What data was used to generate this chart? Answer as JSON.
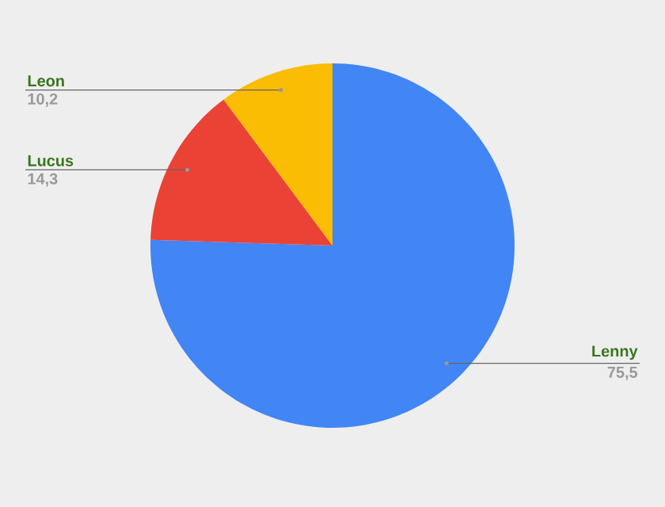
{
  "chart_data": {
    "type": "pie",
    "categories": [
      "Lenny",
      "Lucus",
      "Leon"
    ],
    "values": [
      75.5,
      14.3,
      10.2
    ],
    "value_labels": [
      "75,5",
      "14,3",
      "10,2"
    ],
    "colors": [
      "#4285f4",
      "#ea4335",
      "#fbbc04"
    ]
  }
}
